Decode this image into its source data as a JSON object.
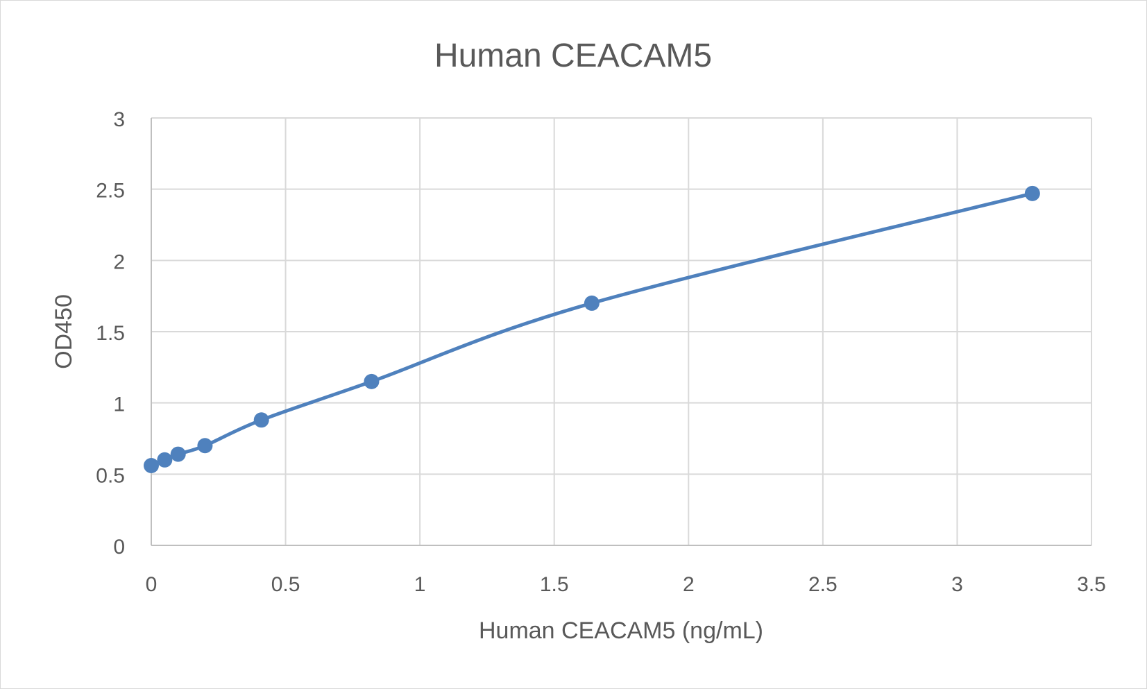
{
  "chart_data": {
    "type": "scatter",
    "title": "Human CEACAM5",
    "xlabel": "Human CEACAM5 (ng/mL)",
    "ylabel": "OD450",
    "xlim": [
      0,
      3.5
    ],
    "ylim": [
      0,
      3
    ],
    "x_ticks": [
      "0",
      "0.5",
      "1",
      "1.5",
      "2",
      "2.5",
      "3",
      "3.5"
    ],
    "y_ticks": [
      "0",
      "0.5",
      "1",
      "1.5",
      "2",
      "2.5",
      "3"
    ],
    "grid": true,
    "legend": "none",
    "series": [
      {
        "name": "Human CEACAM5",
        "x": [
          0,
          0.05,
          0.1,
          0.2,
          0.41,
          0.82,
          1.64,
          3.28
        ],
        "y": [
          0.56,
          0.6,
          0.64,
          0.7,
          0.88,
          1.15,
          1.7,
          2.47
        ],
        "color": "#4f81bd"
      }
    ]
  }
}
